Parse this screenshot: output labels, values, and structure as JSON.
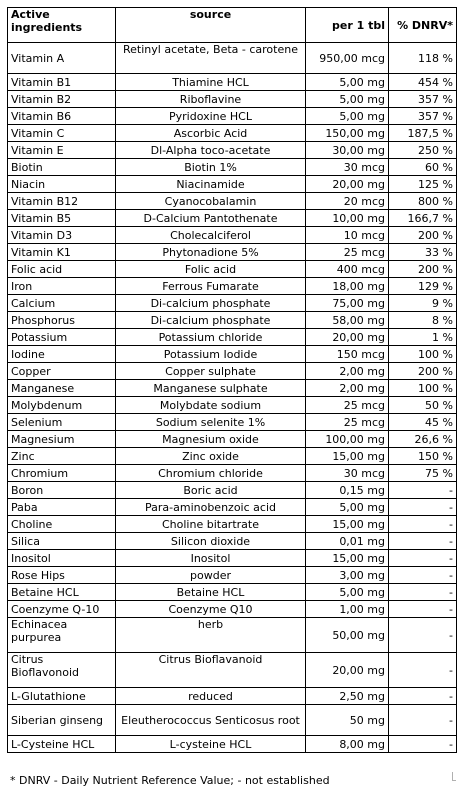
{
  "headers": {
    "ingredient": "Active ingredients",
    "source": "source",
    "per_tablet": "per 1 tbl",
    "dnrv": "% DNRV*"
  },
  "rows": [
    {
      "ingredient": "Vitamin A",
      "source": "Retinyl acetate, Beta - carotene",
      "amount": "950,00 mcg",
      "dnrv": "118 %"
    },
    {
      "ingredient": "Vitamin B1",
      "source": "Thiamine HCL",
      "amount": "5,00 mg",
      "dnrv": "454 %"
    },
    {
      "ingredient": "Vitamin B2",
      "source": "Riboflavine",
      "amount": "5,00 mg",
      "dnrv": "357 %"
    },
    {
      "ingredient": "Vitamin B6",
      "source": "Pyridoxine HCL",
      "amount": "5,00 mg",
      "dnrv": "357 %"
    },
    {
      "ingredient": "Vitamin C",
      "source": "Ascorbic Acid",
      "amount": "150,00 mg",
      "dnrv": "187,5 %"
    },
    {
      "ingredient": "Vitamin E",
      "source": "Dl-Alpha toco-acetate",
      "amount": "30,00 mg",
      "dnrv": "250 %"
    },
    {
      "ingredient": "Biotin",
      "source": "Biotin 1%",
      "amount": "30 mcg",
      "dnrv": "60 %"
    },
    {
      "ingredient": "Niacin",
      "source": "Niacinamide",
      "amount": "20,00 mg",
      "dnrv": "125 %"
    },
    {
      "ingredient": "Vitamin B12",
      "source": "Cyanocobalamin",
      "amount": "20 mcg",
      "dnrv": "800 %"
    },
    {
      "ingredient": "Vitamin B5",
      "source": "D-Calcium Pantothenate",
      "amount": "10,00 mg",
      "dnrv": "166,7 %"
    },
    {
      "ingredient": "Vitamin D3",
      "source": "Cholecalciferol",
      "amount": "10 mcg",
      "dnrv": "200 %"
    },
    {
      "ingredient": "Vitamin K1",
      "source": "Phytonadione 5%",
      "amount": "25 mcg",
      "dnrv": "33 %"
    },
    {
      "ingredient": "Folic acid",
      "source": "Folic acid",
      "amount": "400 mcg",
      "dnrv": "200 %"
    },
    {
      "ingredient": "Iron",
      "source": "Ferrous Fumarate",
      "amount": "18,00 mg",
      "dnrv": "129 %"
    },
    {
      "ingredient": "Calcium",
      "source": "Di-calcium phosphate",
      "amount": "75,00 mg",
      "dnrv": "9 %"
    },
    {
      "ingredient": "Phosphorus",
      "source": "Di-calcium phosphate",
      "amount": "58,00 mg",
      "dnrv": "8 %"
    },
    {
      "ingredient": "Potassium",
      "source": "Potassium chloride",
      "amount": "20,00 mg",
      "dnrv": "1 %"
    },
    {
      "ingredient": "Iodine",
      "source": "Potassium Iodide",
      "amount": "150 mcg",
      "dnrv": "100 %"
    },
    {
      "ingredient": "Copper",
      "source": "Copper sulphate",
      "amount": "2,00 mg",
      "dnrv": "200 %"
    },
    {
      "ingredient": "Manganese",
      "source": "Manganese sulphate",
      "amount": "2,00 mg",
      "dnrv": "100 %"
    },
    {
      "ingredient": "Molybdenum",
      "source": "Molybdate sodium",
      "amount": "25 mcg",
      "dnrv": "50 %"
    },
    {
      "ingredient": "Selenium",
      "source": "Sodium selenite 1%",
      "amount": "25 mcg",
      "dnrv": "45 %"
    },
    {
      "ingredient": "Magnesium",
      "source": "Magnesium oxide",
      "amount": "100,00 mg",
      "dnrv": "26,6 %"
    },
    {
      "ingredient": "Zinc",
      "source": "Zinc oxide",
      "amount": "15,00 mg",
      "dnrv": "150 %"
    },
    {
      "ingredient": "Chromium",
      "source": "Chromium chloride",
      "amount": "30 mcg",
      "dnrv": "75 %"
    },
    {
      "ingredient": "Boron",
      "source": "Boric acid",
      "amount": "0,15 mg",
      "dnrv": "-"
    },
    {
      "ingredient": "Paba",
      "source": "Para-aminobenzoic acid",
      "amount": "5,00 mg",
      "dnrv": "-"
    },
    {
      "ingredient": "Choline",
      "source": "Choline bitartrate",
      "amount": "15,00 mg",
      "dnrv": "-"
    },
    {
      "ingredient": "Silica",
      "source": "Silicon dioxide",
      "amount": "0,01 mg",
      "dnrv": "-"
    },
    {
      "ingredient": "Inositol",
      "source": "Inositol",
      "amount": "15,00 mg",
      "dnrv": "-"
    },
    {
      "ingredient": "Rose Hips",
      "source": "powder",
      "amount": "3,00 mg",
      "dnrv": "-"
    },
    {
      "ingredient": "Betaine HCL",
      "source": "Betaine HCL",
      "amount": "5,00 mg",
      "dnrv": "-"
    },
    {
      "ingredient": "Coenzyme Q-10",
      "source": "Coenzyme Q10",
      "amount": "1,00 mg",
      "dnrv": "-"
    },
    {
      "ingredient": "Echinacea purpurea",
      "source": "herb",
      "amount": "50,00 mg",
      "dnrv": "-"
    },
    {
      "ingredient": "Citrus Bioflavonoid",
      "source": "Citrus Bioflavanoid",
      "amount": "20,00 mg",
      "dnrv": "-"
    },
    {
      "ingredient": "L-Glutathione",
      "source": "reduced",
      "amount": "2,50 mg",
      "dnrv": "-"
    },
    {
      "ingredient": "Siberian ginseng",
      "source": "Eleutherococcus Senticosus root",
      "amount": "50 mg",
      "dnrv": "-"
    },
    {
      "ingredient": "L-Cysteine HCL",
      "source": "L-cysteine HCL",
      "amount": "8,00 mg",
      "dnrv": "-"
    }
  ],
  "footnote": "* DNRV - Daily Nutrient Reference Value;  - not established"
}
